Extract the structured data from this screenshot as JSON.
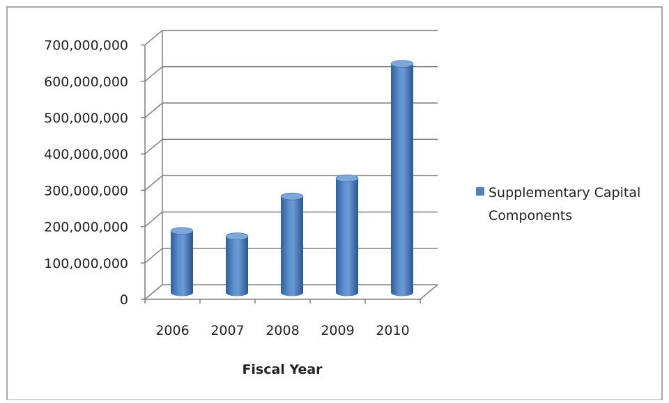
{
  "chart_data": {
    "type": "bar",
    "style": "3d-cylinder",
    "categories": [
      "2006",
      "2007",
      "2008",
      "2009",
      "2010"
    ],
    "series": [
      {
        "name": "Supplementary Capital Components",
        "values": [
          170000000,
          155000000,
          265000000,
          315000000,
          630000000
        ]
      }
    ],
    "xlabel": "Fiscal Year",
    "ylabel": "",
    "ylim": [
      0,
      700000000
    ],
    "yticks": [
      0,
      100000000,
      200000000,
      300000000,
      400000000,
      500000000,
      600000000,
      700000000
    ],
    "ytick_labels": [
      "0",
      "100,000,000",
      "200,000,000",
      "300,000,000",
      "400,000,000",
      "500,000,000",
      "600,000,000",
      "700,000,000"
    ],
    "grid": true,
    "legend": {
      "placement": "right",
      "lines": [
        "Supplementary Capital",
        "Components"
      ]
    },
    "colors": {
      "bar": "#4f81bd",
      "bar_dark": "#2f5f97",
      "bar_light": "#7fa6d8",
      "grid": "#7f7f7f",
      "frame": "#a6a6a6"
    }
  }
}
